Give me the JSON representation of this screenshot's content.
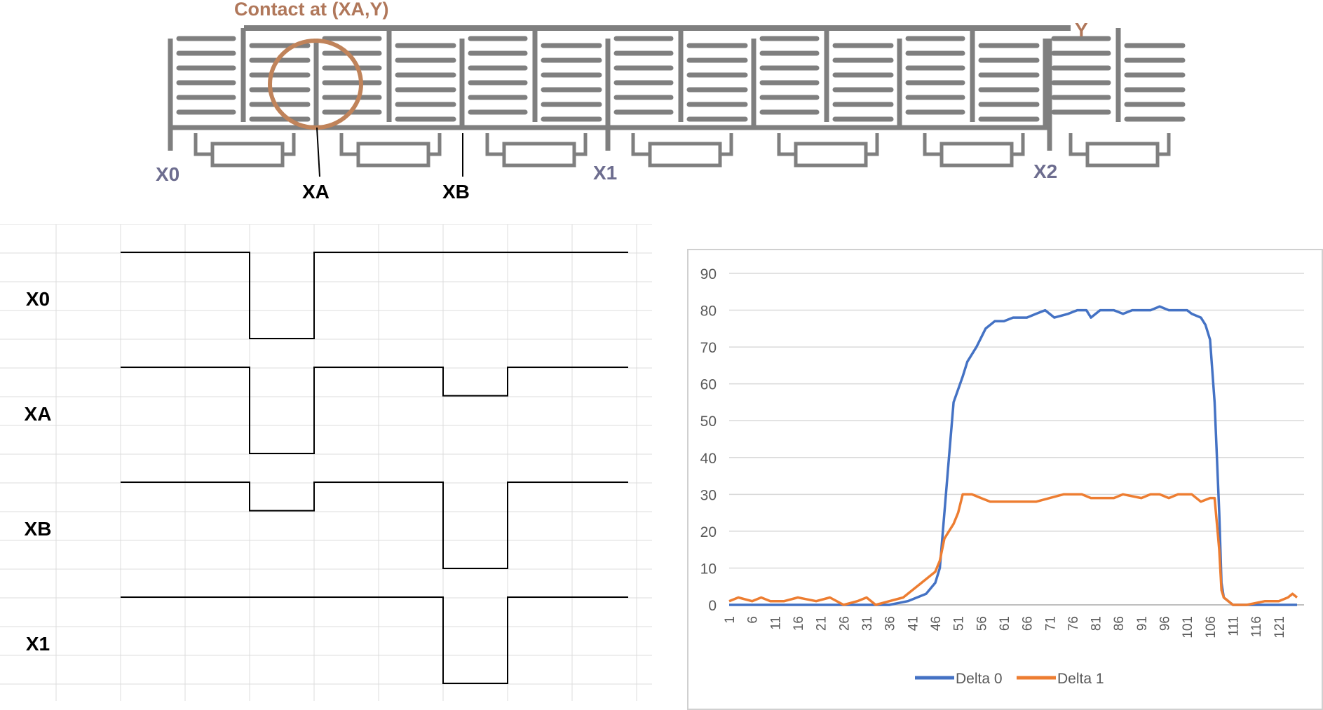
{
  "diagram": {
    "contact_label": "Contact at (XA,Y)",
    "y_label": "Y",
    "x0_label": "X0",
    "xa_label": "XA",
    "xb_label": "XB",
    "x1_label": "X1",
    "x2_label": "X2",
    "electrode_count": 7,
    "colors": {
      "electrode": "#7f7f7f",
      "circle": "#c0835a",
      "contact_label": "#b0775a",
      "x_label": "#6d6d8f",
      "y_label": "#b0775a"
    }
  },
  "timing": {
    "rows": [
      {
        "label": "X0",
        "dips": [
          {
            "start": 2,
            "end": 3,
            "depth": 1.0
          }
        ]
      },
      {
        "label": "XA",
        "dips": [
          {
            "start": 2,
            "end": 3,
            "depth": 1.0
          },
          {
            "start": 5,
            "end": 6,
            "depth": 0.33
          }
        ]
      },
      {
        "label": "XB",
        "dips": [
          {
            "start": 2,
            "end": 3,
            "depth": 0.33
          },
          {
            "start": 5,
            "end": 6,
            "depth": 1.0
          }
        ]
      },
      {
        "label": "X1",
        "dips": [
          {
            "start": 5,
            "end": 6,
            "depth": 1.0
          }
        ]
      }
    ],
    "segments": 8
  },
  "chart_data": {
    "type": "line",
    "title": "",
    "xlabel": "",
    "ylabel": "",
    "ylim": [
      0,
      90
    ],
    "yticks": [
      0,
      10,
      20,
      30,
      40,
      50,
      60,
      70,
      80,
      90
    ],
    "xtick_labels": [
      "1",
      "6",
      "11",
      "16",
      "21",
      "26",
      "31",
      "36",
      "41",
      "46",
      "51",
      "56",
      "61",
      "66",
      "71",
      "76",
      "81",
      "86",
      "91",
      "96",
      "101",
      "106",
      "111",
      "116",
      "121"
    ],
    "x_range": [
      1,
      125
    ],
    "grid": true,
    "legend": "bottom",
    "series": [
      {
        "name": "Delta 0",
        "color": "#4472c4",
        "points": [
          [
            1,
            0
          ],
          [
            10,
            0
          ],
          [
            20,
            0
          ],
          [
            30,
            0
          ],
          [
            36,
            0
          ],
          [
            40,
            1
          ],
          [
            44,
            3
          ],
          [
            46,
            6
          ],
          [
            47,
            10
          ],
          [
            48,
            25
          ],
          [
            49,
            40
          ],
          [
            50,
            55
          ],
          [
            52,
            62
          ],
          [
            53,
            66
          ],
          [
            55,
            70
          ],
          [
            57,
            75
          ],
          [
            59,
            77
          ],
          [
            61,
            77
          ],
          [
            63,
            78
          ],
          [
            66,
            78
          ],
          [
            68,
            79
          ],
          [
            70,
            80
          ],
          [
            72,
            78
          ],
          [
            75,
            79
          ],
          [
            77,
            80
          ],
          [
            79,
            80
          ],
          [
            80,
            78
          ],
          [
            82,
            80
          ],
          [
            85,
            80
          ],
          [
            87,
            79
          ],
          [
            89,
            80
          ],
          [
            93,
            80
          ],
          [
            95,
            81
          ],
          [
            97,
            80
          ],
          [
            101,
            80
          ],
          [
            102,
            79
          ],
          [
            104,
            78
          ],
          [
            105,
            76
          ],
          [
            106,
            72
          ],
          [
            107,
            55
          ],
          [
            108,
            25
          ],
          [
            108.5,
            6
          ],
          [
            109,
            2
          ],
          [
            111,
            0
          ],
          [
            125,
            0
          ]
        ]
      },
      {
        "name": "Delta 1",
        "color": "#ed7d31",
        "points": [
          [
            1,
            1
          ],
          [
            3,
            2
          ],
          [
            6,
            1
          ],
          [
            8,
            2
          ],
          [
            10,
            1
          ],
          [
            13,
            1
          ],
          [
            16,
            2
          ],
          [
            20,
            1
          ],
          [
            23,
            2
          ],
          [
            26,
            0
          ],
          [
            29,
            1
          ],
          [
            31,
            2
          ],
          [
            33,
            0
          ],
          [
            36,
            1
          ],
          [
            39,
            2
          ],
          [
            41,
            4
          ],
          [
            43,
            6
          ],
          [
            45,
            8
          ],
          [
            46,
            9
          ],
          [
            47,
            12
          ],
          [
            48,
            18
          ],
          [
            49,
            20
          ],
          [
            50,
            22
          ],
          [
            51,
            25
          ],
          [
            52,
            30
          ],
          [
            54,
            30
          ],
          [
            56,
            29
          ],
          [
            58,
            28
          ],
          [
            64,
            28
          ],
          [
            68,
            28
          ],
          [
            71,
            29
          ],
          [
            74,
            30
          ],
          [
            78,
            30
          ],
          [
            80,
            29
          ],
          [
            85,
            29
          ],
          [
            87,
            30
          ],
          [
            91,
            29
          ],
          [
            93,
            30
          ],
          [
            95,
            30
          ],
          [
            97,
            29
          ],
          [
            99,
            30
          ],
          [
            102,
            30
          ],
          [
            104,
            28
          ],
          [
            106,
            29
          ],
          [
            107,
            29
          ],
          [
            108,
            15
          ],
          [
            108.5,
            4
          ],
          [
            109,
            2
          ],
          [
            111,
            0
          ],
          [
            114,
            0
          ],
          [
            118,
            1
          ],
          [
            121,
            1
          ],
          [
            123,
            2
          ],
          [
            124,
            3
          ],
          [
            125,
            2
          ]
        ]
      }
    ]
  }
}
